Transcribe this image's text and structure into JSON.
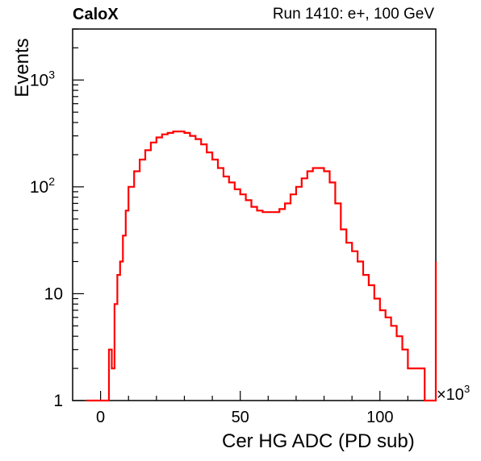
{
  "header": {
    "left": "CaloX",
    "right": "Run 1410: e+, 100 GeV"
  },
  "chart_data": {
    "type": "histogram",
    "xlabel": "Cer HG ADC (PD sub)",
    "ylabel": "Events",
    "x_multiplier": "×10",
    "x_multiplier_exp": "3",
    "xlim": [
      -10,
      120
    ],
    "ylim": [
      1,
      3000
    ],
    "yscale": "log",
    "x_ticks": [
      0,
      50,
      100
    ],
    "y_ticks": [
      {
        "value": 1,
        "label": "1"
      },
      {
        "value": 10,
        "label": "10"
      },
      {
        "value": 100,
        "label": "10",
        "exp": "2"
      },
      {
        "value": 1000,
        "label": "10",
        "exp": "3"
      }
    ],
    "line_color": "#ff0000",
    "series": [
      {
        "x": [
          -5,
          0,
          2,
          3,
          4,
          5,
          6,
          7,
          8,
          9,
          10,
          12,
          14,
          16,
          18,
          20,
          22,
          24,
          26,
          28,
          30,
          32,
          34,
          36,
          38,
          40,
          42,
          44,
          46,
          48,
          50,
          52,
          54,
          56,
          58,
          60,
          62,
          64,
          66,
          68,
          70,
          72,
          74,
          76,
          78,
          80,
          82,
          84,
          86,
          88,
          90,
          92,
          94,
          96,
          98,
          100,
          102,
          104,
          106,
          108,
          110,
          112,
          114,
          116,
          118,
          120
        ],
        "y": [
          1,
          1,
          1,
          3,
          2,
          8,
          15,
          20,
          35,
          60,
          100,
          140,
          180,
          220,
          260,
          290,
          310,
          320,
          330,
          330,
          320,
          300,
          280,
          250,
          210,
          180,
          150,
          125,
          110,
          95,
          85,
          75,
          65,
          60,
          58,
          58,
          58,
          62,
          70,
          85,
          100,
          120,
          140,
          150,
          150,
          140,
          110,
          70,
          40,
          30,
          25,
          20,
          15,
          12,
          9,
          7,
          6,
          5,
          4,
          3,
          2,
          2,
          2,
          1,
          1,
          20
        ]
      }
    ]
  }
}
